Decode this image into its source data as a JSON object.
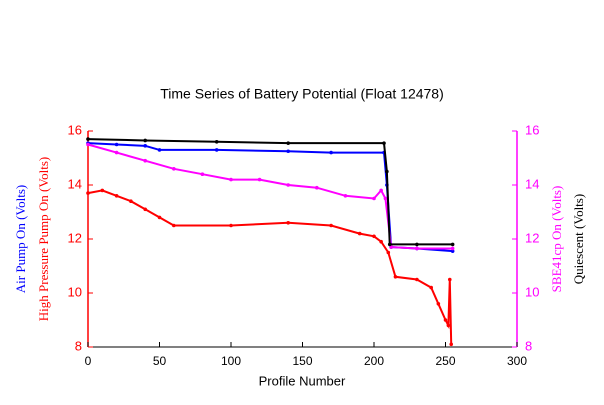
{
  "chart_data": {
    "type": "line",
    "title": "Time Series of Battery Potential (Float 12478)",
    "xlabel": "Profile Number",
    "xlim": [
      0,
      300
    ],
    "xticks": [
      0,
      50,
      100,
      150,
      200,
      250,
      300
    ],
    "ylim": [
      8,
      16
    ],
    "yticks": [
      8,
      10,
      12,
      14,
      16
    ],
    "y2lim": [
      8,
      16
    ],
    "y2ticks": [
      8,
      10,
      12,
      14,
      16
    ],
    "series": [
      {
        "name": "Air Pump On (Volts)",
        "color": "#0000ff",
        "axis": "y",
        "x": [
          0,
          20,
          40,
          50,
          90,
          140,
          170,
          207,
          209,
          212,
          230,
          255
        ],
        "values": [
          15.55,
          15.5,
          15.45,
          15.3,
          15.3,
          15.25,
          15.2,
          15.2,
          14.0,
          11.7,
          11.65,
          11.55
        ]
      },
      {
        "name": "High Pressure Pump On (Volts)",
        "color": "#ff0000",
        "axis": "y",
        "x": [
          0,
          10,
          20,
          30,
          40,
          50,
          60,
          100,
          140,
          170,
          190,
          200,
          205,
          210,
          215,
          230,
          240,
          245,
          250,
          252,
          253,
          254
        ],
        "values": [
          13.7,
          13.8,
          13.6,
          13.4,
          13.1,
          12.8,
          12.5,
          12.5,
          12.6,
          12.5,
          12.2,
          12.1,
          11.9,
          11.5,
          10.6,
          10.5,
          10.2,
          9.6,
          9.0,
          8.8,
          10.5,
          8.1
        ]
      },
      {
        "name": "SBE41cp On (Volts)",
        "color": "#ff00ff",
        "axis": "y2",
        "x": [
          0,
          20,
          40,
          60,
          80,
          100,
          120,
          140,
          160,
          180,
          200,
          205,
          208,
          212,
          230,
          255
        ],
        "values": [
          15.5,
          15.2,
          14.9,
          14.6,
          14.4,
          14.2,
          14.2,
          14.0,
          13.9,
          13.6,
          13.5,
          13.8,
          13.5,
          11.7,
          11.65,
          11.65
        ]
      },
      {
        "name": "Quiescent (Volts)",
        "color": "#000000",
        "axis": "y2",
        "x": [
          0,
          40,
          90,
          140,
          207,
          209,
          211,
          230,
          255
        ],
        "values": [
          15.7,
          15.65,
          15.6,
          15.55,
          15.55,
          14.5,
          11.8,
          11.8,
          11.8
        ]
      }
    ]
  }
}
